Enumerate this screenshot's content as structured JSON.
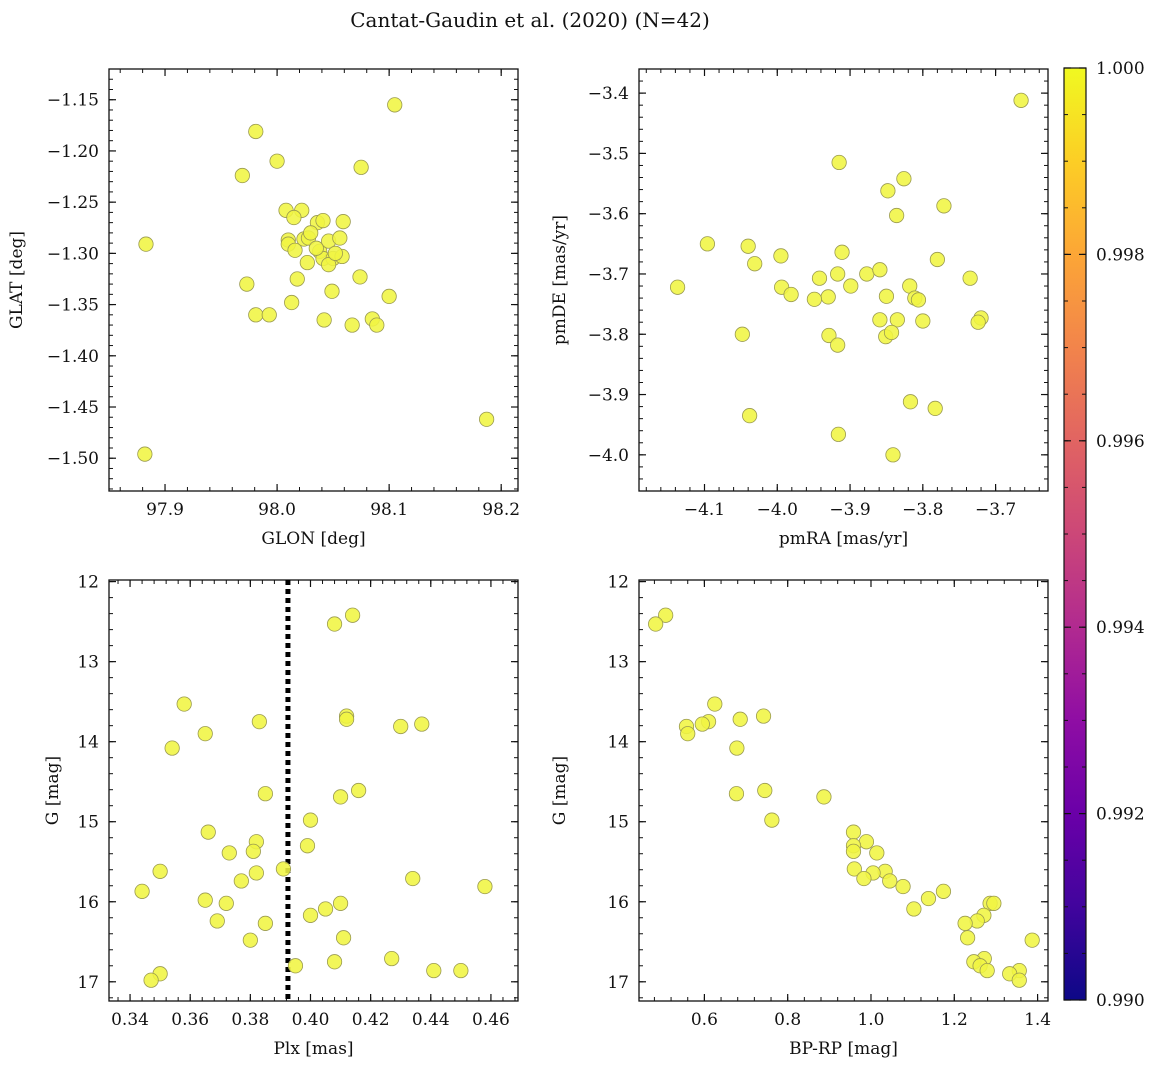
{
  "figure": {
    "title": "Cantat-Gaudin et al. (2020) (N=42)"
  },
  "colorbar": {
    "min": 0.99,
    "max": 1.0,
    "colormap": "plasma",
    "ticks": [
      0.99,
      0.992,
      0.994,
      0.996,
      0.998,
      1.0
    ],
    "tick_labels": [
      "0.990",
      "0.992",
      "0.994",
      "0.996",
      "0.998",
      "1.000"
    ]
  },
  "colors": {
    "marker_fill": "#f0f542",
    "marker_edge": "#9a9a50",
    "axis": "#111111",
    "plx_line": "#000000"
  },
  "chart_data": [
    {
      "type": "scatter",
      "xlabel": "GLON [deg]",
      "ylabel": "GLAT [deg]",
      "xlim": [
        97.85,
        98.215
      ],
      "ylim": [
        -1.532,
        -1.12
      ],
      "xticks": [
        97.9,
        98.0,
        98.1,
        98.2
      ],
      "xtick_labels": [
        "97.9",
        "98.0",
        "98.1",
        "98.2"
      ],
      "yticks": [
        -1.15,
        -1.2,
        -1.25,
        -1.3,
        -1.35,
        -1.4,
        -1.45,
        -1.5
      ],
      "ytick_labels": [
        "−1.15",
        "−1.20",
        "−1.25",
        "−1.30",
        "−1.35",
        "−1.40",
        "−1.45",
        "−1.50"
      ],
      "points": [
        [
          98.105,
          -1.155
        ],
        [
          97.981,
          -1.181
        ],
        [
          97.969,
          -1.224
        ],
        [
          98.0,
          -1.21
        ],
        [
          98.075,
          -1.216
        ],
        [
          97.883,
          -1.291
        ],
        [
          98.008,
          -1.258
        ],
        [
          98.022,
          -1.258
        ],
        [
          98.015,
          -1.265
        ],
        [
          98.036,
          -1.27
        ],
        [
          98.041,
          -1.268
        ],
        [
          98.059,
          -1.269
        ],
        [
          98.01,
          -1.287
        ],
        [
          98.024,
          -1.286
        ],
        [
          98.028,
          -1.285
        ],
        [
          98.01,
          -1.291
        ],
        [
          98.016,
          -1.297
        ],
        [
          98.038,
          -1.298
        ],
        [
          98.046,
          -1.288
        ],
        [
          98.056,
          -1.285
        ],
        [
          98.041,
          -1.305
        ],
        [
          98.05,
          -1.305
        ],
        [
          98.058,
          -1.303
        ],
        [
          98.027,
          -1.309
        ],
        [
          98.046,
          -1.311
        ],
        [
          98.018,
          -1.325
        ],
        [
          98.074,
          -1.323
        ],
        [
          97.973,
          -1.33
        ],
        [
          98.049,
          -1.337
        ],
        [
          98.013,
          -1.348
        ],
        [
          97.981,
          -1.36
        ],
        [
          97.993,
          -1.36
        ],
        [
          98.042,
          -1.365
        ],
        [
          98.067,
          -1.37
        ],
        [
          98.085,
          -1.364
        ],
        [
          98.089,
          -1.37
        ],
        [
          98.1,
          -1.342
        ],
        [
          98.187,
          -1.462
        ],
        [
          97.882,
          -1.496
        ],
        [
          98.03,
          -1.28
        ],
        [
          98.035,
          -1.295
        ],
        [
          98.052,
          -1.3
        ]
      ]
    },
    {
      "type": "scatter",
      "xlabel": "pmRA [mas/yr]",
      "ylabel": "pmDE [mas/yr]",
      "xlim": [
        -4.19,
        -3.628
      ],
      "ylim": [
        -4.06,
        -3.36
      ],
      "xticks": [
        -4.1,
        -4.0,
        -3.9,
        -3.8,
        -3.7
      ],
      "xtick_labels": [
        "−4.1",
        "−4.0",
        "−3.9",
        "−3.8",
        "−3.7"
      ],
      "yticks": [
        -3.4,
        -3.5,
        -3.6,
        -3.7,
        -3.8,
        -3.9,
        -4.0
      ],
      "ytick_labels": [
        "−3.4",
        "−3.5",
        "−3.6",
        "−3.7",
        "−3.8",
        "−3.9",
        "−4.0"
      ],
      "points": [
        [
          -3.665,
          -3.412
        ],
        [
          -3.915,
          -3.515
        ],
        [
          -3.826,
          -3.542
        ],
        [
          -3.848,
          -3.562
        ],
        [
          -3.771,
          -3.587
        ],
        [
          -3.836,
          -3.603
        ],
        [
          -4.096,
          -3.65
        ],
        [
          -4.04,
          -3.654
        ],
        [
          -3.995,
          -3.67
        ],
        [
          -3.911,
          -3.664
        ],
        [
          -3.78,
          -3.676
        ],
        [
          -4.031,
          -3.683
        ],
        [
          -3.942,
          -3.707
        ],
        [
          -3.917,
          -3.7
        ],
        [
          -3.877,
          -3.7
        ],
        [
          -3.859,
          -3.693
        ],
        [
          -3.735,
          -3.707
        ],
        [
          -4.137,
          -3.722
        ],
        [
          -3.994,
          -3.722
        ],
        [
          -3.981,
          -3.734
        ],
        [
          -3.93,
          -3.738
        ],
        [
          -3.949,
          -3.742
        ],
        [
          -3.899,
          -3.72
        ],
        [
          -3.85,
          -3.737
        ],
        [
          -3.818,
          -3.72
        ],
        [
          -3.811,
          -3.74
        ],
        [
          -3.806,
          -3.743
        ],
        [
          -3.72,
          -3.773
        ],
        [
          -3.724,
          -3.78
        ],
        [
          -3.8,
          -3.778
        ],
        [
          -3.835,
          -3.776
        ],
        [
          -3.859,
          -3.776
        ],
        [
          -4.048,
          -3.8
        ],
        [
          -3.929,
          -3.802
        ],
        [
          -3.917,
          -3.818
        ],
        [
          -3.851,
          -3.804
        ],
        [
          -3.843,
          -3.797
        ],
        [
          -3.817,
          -3.912
        ],
        [
          -3.783,
          -3.923
        ],
        [
          -4.038,
          -3.935
        ],
        [
          -3.916,
          -3.966
        ],
        [
          -3.841,
          -4.0
        ]
      ]
    },
    {
      "type": "scatter",
      "xlabel": "Plx [mas]",
      "ylabel": "G [mag]",
      "xlim": [
        0.333,
        0.469
      ],
      "ylim": [
        17.24,
        11.98
      ],
      "xticks": [
        0.34,
        0.36,
        0.38,
        0.4,
        0.42,
        0.44,
        0.46
      ],
      "xtick_labels": [
        "0.34",
        "0.36",
        "0.38",
        "0.40",
        "0.42",
        "0.44",
        "0.46"
      ],
      "yticks": [
        12,
        13,
        14,
        15,
        16,
        17
      ],
      "ytick_labels": [
        "12",
        "13",
        "14",
        "15",
        "16",
        "17"
      ],
      "vline_x": 0.3925,
      "points": [
        [
          0.414,
          12.42
        ],
        [
          0.408,
          12.53
        ],
        [
          0.358,
          13.53
        ],
        [
          0.412,
          13.68
        ],
        [
          0.412,
          13.72
        ],
        [
          0.383,
          13.75
        ],
        [
          0.43,
          13.81
        ],
        [
          0.437,
          13.78
        ],
        [
          0.365,
          13.9
        ],
        [
          0.354,
          14.08
        ],
        [
          0.385,
          14.65
        ],
        [
          0.416,
          14.61
        ],
        [
          0.41,
          14.69
        ],
        [
          0.4,
          14.98
        ],
        [
          0.366,
          15.13
        ],
        [
          0.382,
          15.25
        ],
        [
          0.399,
          15.3
        ],
        [
          0.373,
          15.39
        ],
        [
          0.381,
          15.37
        ],
        [
          0.391,
          15.59
        ],
        [
          0.35,
          15.62
        ],
        [
          0.382,
          15.64
        ],
        [
          0.377,
          15.74
        ],
        [
          0.434,
          15.71
        ],
        [
          0.458,
          15.81
        ],
        [
          0.344,
          15.87
        ],
        [
          0.365,
          15.98
        ],
        [
          0.372,
          16.02
        ],
        [
          0.41,
          16.02
        ],
        [
          0.405,
          16.09
        ],
        [
          0.4,
          16.17
        ],
        [
          0.369,
          16.24
        ],
        [
          0.385,
          16.27
        ],
        [
          0.38,
          16.48
        ],
        [
          0.411,
          16.45
        ],
        [
          0.427,
          16.71
        ],
        [
          0.408,
          16.75
        ],
        [
          0.395,
          16.8
        ],
        [
          0.441,
          16.86
        ],
        [
          0.45,
          16.86
        ],
        [
          0.35,
          16.9
        ],
        [
          0.347,
          16.98
        ]
      ]
    },
    {
      "type": "scatter",
      "xlabel": "BP-RP [mag]",
      "ylabel": "G [mag]",
      "xlim": [
        0.443,
        1.425
      ],
      "ylim": [
        17.24,
        11.98
      ],
      "xticks": [
        0.6,
        0.8,
        1.0,
        1.2,
        1.4
      ],
      "xtick_labels": [
        "0.6",
        "0.8",
        "1.0",
        "1.2",
        "1.4"
      ],
      "yticks": [
        12,
        13,
        14,
        15,
        16,
        17
      ],
      "ytick_labels": [
        "12",
        "13",
        "14",
        "15",
        "16",
        "17"
      ],
      "points": [
        [
          0.507,
          12.42
        ],
        [
          0.483,
          12.53
        ],
        [
          0.625,
          13.53
        ],
        [
          0.742,
          13.68
        ],
        [
          0.61,
          13.75
        ],
        [
          0.595,
          13.78
        ],
        [
          0.686,
          13.72
        ],
        [
          0.557,
          13.81
        ],
        [
          0.56,
          13.9
        ],
        [
          0.678,
          14.08
        ],
        [
          0.677,
          14.65
        ],
        [
          0.745,
          14.61
        ],
        [
          0.887,
          14.69
        ],
        [
          0.762,
          14.98
        ],
        [
          0.958,
          15.13
        ],
        [
          0.989,
          15.25
        ],
        [
          0.958,
          15.3
        ],
        [
          0.958,
          15.37
        ],
        [
          1.014,
          15.39
        ],
        [
          0.96,
          15.59
        ],
        [
          1.034,
          15.62
        ],
        [
          1.005,
          15.64
        ],
        [
          0.983,
          15.71
        ],
        [
          1.045,
          15.74
        ],
        [
          1.077,
          15.81
        ],
        [
          1.174,
          15.87
        ],
        [
          1.138,
          15.96
        ],
        [
          1.286,
          16.02
        ],
        [
          1.295,
          16.02
        ],
        [
          1.103,
          16.09
        ],
        [
          1.271,
          16.17
        ],
        [
          1.255,
          16.24
        ],
        [
          1.226,
          16.27
        ],
        [
          1.232,
          16.45
        ],
        [
          1.387,
          16.48
        ],
        [
          1.272,
          16.71
        ],
        [
          1.247,
          16.75
        ],
        [
          1.262,
          16.8
        ],
        [
          1.279,
          16.86
        ],
        [
          1.356,
          16.86
        ],
        [
          1.333,
          16.9
        ],
        [
          1.356,
          16.98
        ]
      ]
    }
  ]
}
